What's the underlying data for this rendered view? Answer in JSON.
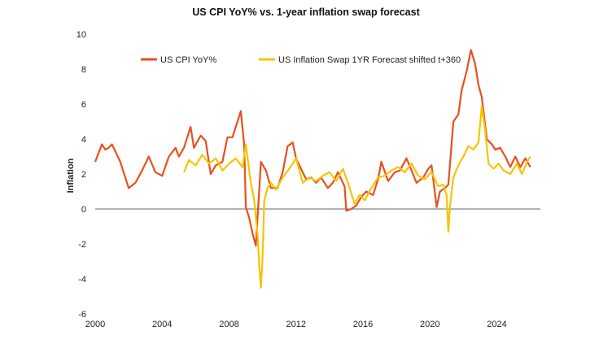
{
  "chart_data": {
    "type": "line",
    "title": "US CPI YoY% vs. 1-year inflation swap forecast",
    "ylabel": "Inflation",
    "xlabel": "",
    "xlim": [
      2000,
      2026.6
    ],
    "ylim": [
      -6,
      10
    ],
    "x_ticks": [
      2000,
      2004,
      2008,
      2012,
      2016,
      2020,
      2024
    ],
    "y_ticks": [
      -6,
      -4,
      -2,
      0,
      2,
      4,
      6,
      8,
      10
    ],
    "grid": false,
    "zero_line": true,
    "legend": "top",
    "colors": {
      "cpi": "#e8501e",
      "swap": "#f5c400"
    },
    "series": [
      {
        "name": "US CPI YoY%",
        "x": [
          2000.0,
          2000.2,
          2000.4,
          2000.6,
          2000.8,
          2001.0,
          2001.2,
          2001.5,
          2001.8,
          2002.0,
          2002.4,
          2002.8,
          2003.0,
          2003.2,
          2003.6,
          2004.0,
          2004.4,
          2004.8,
          2005.0,
          2005.3,
          2005.7,
          2005.9,
          2006.3,
          2006.6,
          2006.9,
          2007.2,
          2007.6,
          2007.9,
          2008.2,
          2008.5,
          2008.7,
          2008.9,
          2009.0,
          2009.2,
          2009.4,
          2009.6,
          2009.9,
          2010.2,
          2010.5,
          2010.9,
          2011.2,
          2011.5,
          2011.8,
          2012.0,
          2012.3,
          2012.6,
          2012.9,
          2013.2,
          2013.5,
          2013.9,
          2014.2,
          2014.5,
          2014.9,
          2015.0,
          2015.3,
          2015.6,
          2015.9,
          2016.2,
          2016.6,
          2016.9,
          2017.1,
          2017.5,
          2017.9,
          2018.2,
          2018.6,
          2018.9,
          2019.2,
          2019.6,
          2019.9,
          2020.1,
          2020.4,
          2020.6,
          2020.9,
          2021.1,
          2021.4,
          2021.7,
          2021.9,
          2022.2,
          2022.45,
          2022.7,
          2022.9,
          2023.1,
          2023.4,
          2023.7,
          2023.9,
          2024.2,
          2024.5,
          2024.8,
          2025.1,
          2025.4,
          2025.7,
          2026.0
        ],
        "values": [
          2.7,
          3.2,
          3.7,
          3.4,
          3.5,
          3.7,
          3.3,
          2.7,
          1.8,
          1.2,
          1.5,
          2.2,
          2.6,
          3.0,
          2.1,
          1.9,
          3.0,
          3.5,
          3.0,
          3.5,
          4.7,
          3.5,
          4.2,
          3.9,
          2.0,
          2.5,
          2.7,
          4.1,
          4.1,
          5.0,
          5.6,
          3.7,
          0.1,
          -0.5,
          -1.4,
          -2.1,
          2.7,
          2.2,
          1.2,
          1.2,
          2.1,
          3.6,
          3.8,
          2.9,
          2.3,
          1.7,
          1.8,
          1.5,
          1.8,
          1.2,
          1.5,
          2.1,
          1.3,
          -0.1,
          0.0,
          0.2,
          0.7,
          1.0,
          0.8,
          1.7,
          2.7,
          1.6,
          2.1,
          2.2,
          2.9,
          2.2,
          1.5,
          1.8,
          2.3,
          2.5,
          0.1,
          1.0,
          1.2,
          1.4,
          5.0,
          5.4,
          6.8,
          7.9,
          9.1,
          8.3,
          7.1,
          6.4,
          4.0,
          3.7,
          3.4,
          3.5,
          3.0,
          2.4,
          3.0,
          2.4,
          2.9,
          2.4
        ]
      },
      {
        "name": "US Inflation Swap 1YR Forecast shifted t+360",
        "x": [
          2005.3,
          2005.6,
          2006.0,
          2006.4,
          2006.8,
          2007.2,
          2007.6,
          2008.0,
          2008.4,
          2008.8,
          2009.0,
          2009.3,
          2009.5,
          2009.7,
          2009.8,
          2009.9,
          2010.0,
          2010.1,
          2010.3,
          2010.5,
          2010.8,
          2011.2,
          2011.6,
          2012.0,
          2012.4,
          2012.8,
          2013.2,
          2013.6,
          2014.0,
          2014.4,
          2014.8,
          2015.1,
          2015.5,
          2015.8,
          2016.1,
          2016.5,
          2016.9,
          2017.3,
          2017.7,
          2018.1,
          2018.5,
          2018.9,
          2019.3,
          2019.7,
          2020.1,
          2020.5,
          2020.8,
          2021.0,
          2021.1,
          2021.2,
          2021.4,
          2021.7,
          2022.0,
          2022.3,
          2022.6,
          2022.9,
          2023.1,
          2023.3,
          2023.5,
          2023.8,
          2024.1,
          2024.4,
          2024.8,
          2025.2,
          2025.5,
          2025.8,
          2026.0
        ],
        "values": [
          2.1,
          2.8,
          2.5,
          3.1,
          2.6,
          2.9,
          2.2,
          2.6,
          2.9,
          2.4,
          3.7,
          1.5,
          0.5,
          -1.5,
          -3.2,
          -4.5,
          -2.8,
          0.5,
          1.2,
          1.5,
          1.1,
          1.8,
          2.3,
          2.9,
          1.5,
          1.8,
          1.6,
          1.9,
          2.1,
          1.6,
          2.3,
          1.5,
          0.3,
          0.8,
          0.5,
          1.2,
          1.8,
          1.9,
          2.2,
          2.4,
          2.1,
          2.6,
          1.9,
          1.7,
          2.1,
          1.3,
          1.4,
          0.8,
          -1.3,
          0.2,
          1.8,
          2.5,
          3.0,
          3.6,
          3.4,
          3.8,
          5.9,
          4.5,
          2.6,
          2.3,
          2.6,
          2.2,
          2.0,
          2.6,
          2.0,
          2.7,
          3.0
        ]
      }
    ]
  }
}
